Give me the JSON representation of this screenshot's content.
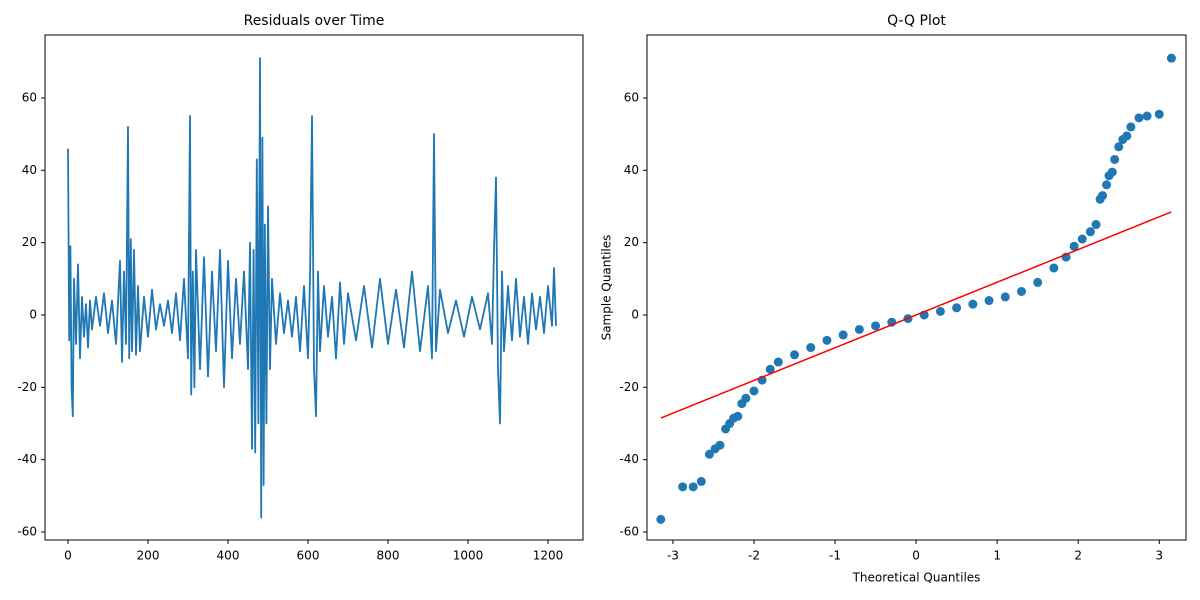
{
  "chart_data": [
    {
      "type": "line",
      "title": "Residuals over Time",
      "color": "#1f77b4",
      "x": [
        0,
        3,
        6,
        9,
        12,
        15,
        20,
        25,
        30,
        35,
        40,
        45,
        50,
        55,
        60,
        70,
        80,
        90,
        100,
        110,
        120,
        130,
        135,
        140,
        145,
        150,
        153,
        157,
        160,
        165,
        170,
        175,
        180,
        190,
        200,
        210,
        220,
        230,
        240,
        250,
        260,
        270,
        280,
        290,
        300,
        305,
        308,
        312,
        316,
        320,
        330,
        340,
        350,
        360,
        370,
        380,
        390,
        400,
        410,
        420,
        430,
        440,
        450,
        455,
        460,
        464,
        468,
        472,
        476,
        480,
        483,
        486,
        489,
        492,
        496,
        500,
        505,
        510,
        520,
        530,
        540,
        550,
        560,
        570,
        580,
        590,
        600,
        605,
        610,
        615,
        620,
        625,
        630,
        640,
        650,
        660,
        670,
        680,
        690,
        700,
        720,
        740,
        760,
        780,
        800,
        820,
        840,
        860,
        880,
        900,
        910,
        915,
        920,
        930,
        950,
        970,
        990,
        1010,
        1030,
        1050,
        1060,
        1065,
        1070,
        1075,
        1080,
        1085,
        1090,
        1100,
        1110,
        1120,
        1130,
        1140,
        1150,
        1160,
        1170,
        1180,
        1190,
        1200,
        1210,
        1215,
        1220
      ],
      "values": [
        46,
        -7,
        19,
        -20,
        -28,
        10,
        -8,
        14,
        -12,
        5,
        -6,
        3,
        -9,
        4,
        -4,
        5,
        -3,
        6,
        -5,
        4,
        -8,
        15,
        -13,
        12,
        -8,
        52,
        -12,
        21,
        -10,
        18,
        -11,
        8,
        -10,
        5,
        -6,
        7,
        -4,
        3,
        -3,
        4,
        -5,
        6,
        -7,
        10,
        -12,
        55,
        -22,
        12,
        -20,
        18,
        -15,
        16,
        -17,
        12,
        -10,
        18,
        -20,
        15,
        -12,
        10,
        -8,
        12,
        -15,
        20,
        -37,
        18,
        -38,
        43,
        -30,
        71,
        -56,
        49,
        -47,
        25,
        -30,
        30,
        -15,
        10,
        -8,
        6,
        -5,
        4,
        -6,
        5,
        -10,
        8,
        -12,
        10,
        55,
        -15,
        -28,
        12,
        -10,
        8,
        -6,
        5,
        -12,
        9,
        -8,
        6,
        -7,
        8,
        -9,
        10,
        -8,
        7,
        -9,
        12,
        -10,
        8,
        -12,
        50,
        -10,
        7,
        -5,
        4,
        -6,
        5,
        -4,
        6,
        -8,
        18,
        38,
        -15,
        -30,
        12,
        -10,
        8,
        -7,
        10,
        -6,
        5,
        -8,
        6,
        -4,
        5,
        -5,
        8,
        -3,
        13,
        -3
      ],
      "xlim": [
        -57.5,
        1287.5
      ],
      "ylim": [
        -62.2,
        77.4
      ],
      "xticks": [
        0,
        200,
        400,
        600,
        800,
        1000,
        1200
      ],
      "yticks": [
        -60,
        -40,
        -20,
        0,
        20,
        40,
        60
      ]
    },
    {
      "type": "scatter",
      "title": "Q-Q Plot",
      "xlabel": "Theoretical Quantiles",
      "ylabel": "Sample Quantiles",
      "series": [
        {
          "kind": "scatter",
          "color": "#1f77b4",
          "x": [
            -3.15,
            -2.88,
            -2.75,
            -2.65,
            -2.55,
            -2.48,
            -2.42,
            -2.35,
            -2.3,
            -2.25,
            -2.2,
            -2.15,
            -2.1,
            -2.0,
            -1.9,
            -1.8,
            -1.7,
            -1.5,
            -1.3,
            -1.1,
            -0.9,
            -0.7,
            -0.5,
            -0.3,
            -0.1,
            0.1,
            0.3,
            0.5,
            0.7,
            0.9,
            1.1,
            1.3,
            1.5,
            1.7,
            1.85,
            1.95,
            2.05,
            2.15,
            2.22,
            2.27,
            2.3,
            2.35,
            2.38,
            2.42,
            2.45,
            2.5,
            2.55,
            2.6,
            2.65,
            2.75,
            2.85,
            3.0,
            3.15
          ],
          "values": [
            -56.5,
            -47.5,
            -47.5,
            -46,
            -38.5,
            -37,
            -36,
            -31.5,
            -30,
            -28.5,
            -28,
            -24.5,
            -23,
            -21,
            -18,
            -15,
            -13,
            -11,
            -9,
            -7,
            -5.5,
            -4,
            -3,
            -2,
            -1,
            0,
            1,
            2,
            3,
            4,
            5,
            6.5,
            9,
            13,
            16,
            19,
            21,
            23,
            25,
            32,
            33,
            36,
            38.5,
            39.5,
            43,
            46.5,
            48.5,
            49.5,
            52,
            54.5,
            55,
            55.5,
            71
          ]
        },
        {
          "kind": "line",
          "color": "#ff0000",
          "x": [
            -3.15,
            3.15
          ],
          "values": [
            -28.5,
            28.5
          ]
        }
      ],
      "xlim": [
        -3.32,
        3.33
      ],
      "ylim": [
        -62.2,
        77.4
      ],
      "xticks": [
        -3,
        -2,
        -1,
        0,
        1,
        2,
        3
      ],
      "yticks": [
        -60,
        -40,
        -20,
        0,
        20,
        40,
        60
      ]
    }
  ]
}
